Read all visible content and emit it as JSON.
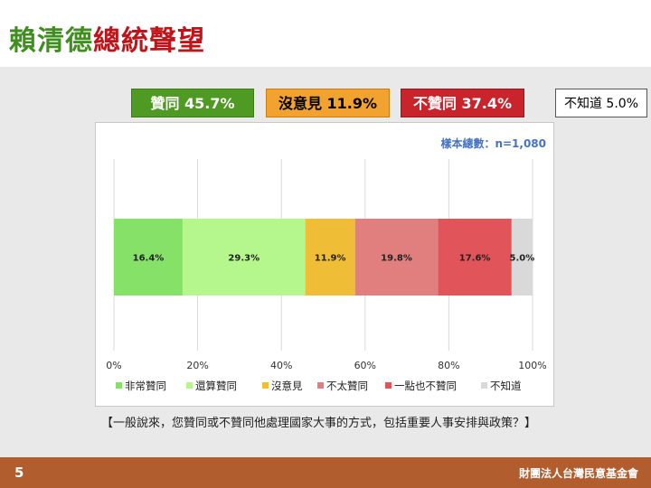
{
  "title": {
    "part1": "賴清德",
    "part2": "總統聲望"
  },
  "summary": {
    "agree": "贊同 45.7%",
    "neutral": "沒意見 11.9%",
    "disagree": "不贊同 37.4%",
    "unknown": "不知道 5.0%"
  },
  "sample_size": "樣本總數：n=1,080",
  "footnote": "【一般說來，您贊同或不贊同他處理國家大事的方式，包括重要人事安排與政策？】",
  "page_number": "5",
  "organization": "財團法人台灣民意基金會",
  "colors": {
    "agree_summary": "#4f9a23",
    "neutral_summary": "#f2a22f",
    "disagree_summary": "#c9232b"
  },
  "chart_data": {
    "type": "bar",
    "orientation": "horizontal",
    "stacked": true,
    "xlim": [
      0,
      100
    ],
    "x_ticks": [
      "0%",
      "20%",
      "40%",
      "60%",
      "80%",
      "100%"
    ],
    "grid": true,
    "legend_position": "bottom",
    "series": [
      {
        "name": "非常贊同",
        "value": 16.4,
        "label": "16.4%",
        "color": "#86e169"
      },
      {
        "name": "還算贊同",
        "value": 29.3,
        "label": "29.3%",
        "color": "#b6f78d"
      },
      {
        "name": "沒意見",
        "value": 11.9,
        "label": "11.9%",
        "color": "#f0bd37"
      },
      {
        "name": "不太贊同",
        "value": 19.8,
        "label": "19.8%",
        "color": "#e17f7f"
      },
      {
        "name": "一點也不贊同",
        "value": 17.6,
        "label": "17.6%",
        "color": "#e0545a"
      },
      {
        "name": "不知道",
        "value": 5.0,
        "label": "5.0%",
        "color": "#d9d9d9"
      }
    ]
  }
}
